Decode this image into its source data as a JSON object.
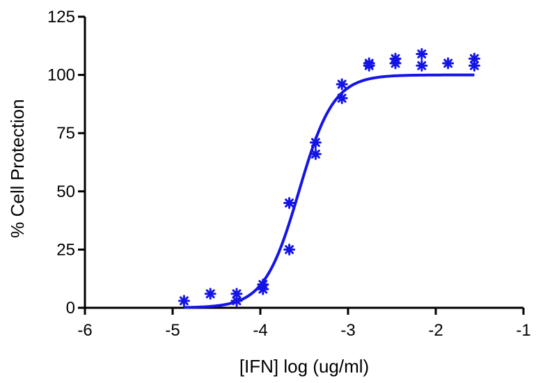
{
  "chart_data": {
    "type": "scatter",
    "title": "",
    "xlabel": "[IFN] log (ug/ml)",
    "ylabel": "% Cell Protection",
    "xlim": [
      -6,
      -1
    ],
    "ylim": [
      0,
      125
    ],
    "x_ticks": [
      "-6",
      "-5",
      "-4",
      "-3",
      "-2",
      "-1"
    ],
    "y_ticks": [
      "0",
      "25",
      "50",
      "75",
      "100",
      "125"
    ],
    "grid": false,
    "legend": "none",
    "series": [
      {
        "points": [
          {
            "x": -4.87,
            "y": 3
          },
          {
            "x": -4.57,
            "y": 6
          },
          {
            "x": -4.27,
            "y": 6
          },
          {
            "x": -4.27,
            "y": 3
          },
          {
            "x": -3.97,
            "y": 10
          },
          {
            "x": -3.97,
            "y": 8
          },
          {
            "x": -3.67,
            "y": 45
          },
          {
            "x": -3.67,
            "y": 25
          },
          {
            "x": -3.37,
            "y": 71
          },
          {
            "x": -3.37,
            "y": 66
          },
          {
            "x": -3.07,
            "y": 96
          },
          {
            "x": -3.07,
            "y": 90
          },
          {
            "x": -2.76,
            "y": 105
          },
          {
            "x": -2.76,
            "y": 104
          },
          {
            "x": -2.46,
            "y": 107
          },
          {
            "x": -2.46,
            "y": 105
          },
          {
            "x": -2.16,
            "y": 109
          },
          {
            "x": -2.16,
            "y": 104
          },
          {
            "x": -1.86,
            "y": 105
          },
          {
            "x": -1.56,
            "y": 107
          },
          {
            "x": -1.56,
            "y": 104
          }
        ],
        "fit": {
          "bottom": 0,
          "top": 100,
          "log_ec50": -3.56,
          "hill_slope": 2.2,
          "x_start": -4.87,
          "x_end": -1.56
        }
      }
    ],
    "color": "#1414e6"
  }
}
